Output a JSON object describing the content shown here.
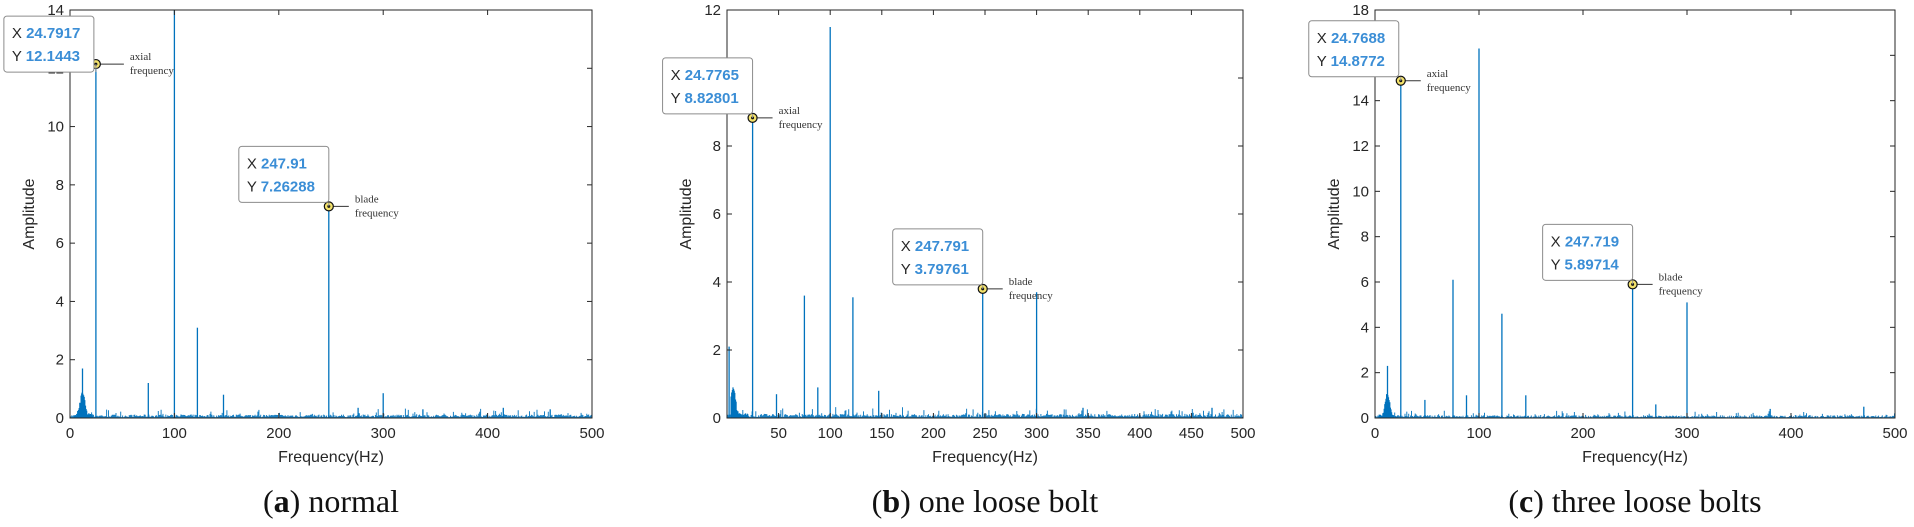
{
  "chart_data": [
    {
      "type": "line",
      "title": "",
      "xlabel": "Frequency(Hz)",
      "ylabel": "Amplitude",
      "xlim": [
        0,
        500
      ],
      "ylim": [
        0,
        14
      ],
      "xticks": [
        0,
        100,
        200,
        300,
        400,
        500
      ],
      "yticks": [
        0,
        2,
        4,
        6,
        8,
        10,
        12,
        14
      ],
      "caption": {
        "letter": "a",
        "text": " normal",
        "paren_open": "(",
        "paren_close": ")",
        "bold_letter": true
      },
      "color": "#0072bd",
      "peaks": [
        {
          "x": 12,
          "y": 1.7
        },
        {
          "x": 24.79,
          "y": 12.14
        },
        {
          "x": 75,
          "y": 1.2
        },
        {
          "x": 100,
          "y": 14.0
        },
        {
          "x": 122,
          "y": 3.1
        },
        {
          "x": 147,
          "y": 0.8
        },
        {
          "x": 247.91,
          "y": 7.26
        },
        {
          "x": 276,
          "y": 0.35
        },
        {
          "x": 300,
          "y": 0.85
        },
        {
          "x": 338,
          "y": 0.3
        },
        {
          "x": 415,
          "y": 0.35
        },
        {
          "x": 460,
          "y": 0.3
        }
      ],
      "annotations": [
        {
          "x": 24.7917,
          "y": 12.1443,
          "x_label": "X",
          "y_label": "Y",
          "x_value": "24.7917",
          "y_value": "12.1443",
          "note_line1": "axial",
          "note_line2": "frequency"
        },
        {
          "x": 247.91,
          "y": 7.26288,
          "x_label": "X",
          "y_label": "Y",
          "x_value": "247.91",
          "y_value": "7.26288",
          "note_line1": "blade",
          "note_line2": "frequency"
        }
      ]
    },
    {
      "type": "line",
      "title": "",
      "xlabel": "Frequency(Hz)",
      "ylabel": "Amplitude",
      "xlim": [
        0,
        500
      ],
      "ylim": [
        0,
        12
      ],
      "xticks": [
        50,
        100,
        150,
        200,
        250,
        300,
        350,
        400,
        450,
        500
      ],
      "yticks": [
        0,
        2,
        4,
        6,
        8,
        10,
        12
      ],
      "caption": {
        "letter": "b",
        "text": " one loose bolt",
        "paren_open": "(",
        "paren_close": ")",
        "bold_letter": true
      },
      "color": "#0072bd",
      "peaks": [
        {
          "x": 2,
          "y": 2.1
        },
        {
          "x": 24.78,
          "y": 8.83
        },
        {
          "x": 48,
          "y": 0.7
        },
        {
          "x": 75,
          "y": 3.6
        },
        {
          "x": 88,
          "y": 0.9
        },
        {
          "x": 100,
          "y": 11.5
        },
        {
          "x": 122,
          "y": 3.55
        },
        {
          "x": 147,
          "y": 0.8
        },
        {
          "x": 247.79,
          "y": 3.8
        },
        {
          "x": 300,
          "y": 3.7
        },
        {
          "x": 345,
          "y": 0.3
        },
        {
          "x": 470,
          "y": 0.3
        }
      ],
      "annotations": [
        {
          "x": 24.7765,
          "y": 8.82801,
          "x_label": "X",
          "y_label": "Y",
          "x_value": "24.7765",
          "y_value": "8.82801",
          "note_line1": "axial",
          "note_line2": "frequency"
        },
        {
          "x": 247.791,
          "y": 3.79761,
          "x_label": "X",
          "y_label": "Y",
          "x_value": "247.791",
          "y_value": "3.79761",
          "note_line1": "blade",
          "note_line2": "frequency"
        }
      ]
    },
    {
      "type": "line",
      "title": "",
      "xlabel": "Frequency(Hz)",
      "ylabel": "Amplitude",
      "xlim": [
        0,
        500
      ],
      "ylim": [
        0,
        18
      ],
      "xticks": [
        0,
        100,
        200,
        300,
        400,
        500
      ],
      "yticks": [
        0,
        2,
        4,
        6,
        8,
        10,
        12,
        14,
        16,
        18
      ],
      "caption": {
        "letter": "c",
        "text": " three loose bolts",
        "paren_open": "(",
        "paren_close": ")",
        "bold_letter": true
      },
      "color": "#0072bd",
      "peaks": [
        {
          "x": 12,
          "y": 2.3
        },
        {
          "x": 24.77,
          "y": 14.88
        },
        {
          "x": 48,
          "y": 0.8
        },
        {
          "x": 75,
          "y": 6.1
        },
        {
          "x": 88,
          "y": 1.0
        },
        {
          "x": 100,
          "y": 16.3
        },
        {
          "x": 122,
          "y": 4.6
        },
        {
          "x": 145,
          "y": 1.0
        },
        {
          "x": 247.72,
          "y": 5.9
        },
        {
          "x": 270,
          "y": 0.6
        },
        {
          "x": 300,
          "y": 5.1
        },
        {
          "x": 380,
          "y": 0.4
        },
        {
          "x": 470,
          "y": 0.5
        }
      ],
      "annotations": [
        {
          "x": 24.7688,
          "y": 14.8772,
          "x_label": "X",
          "y_label": "Y",
          "x_value": "24.7688",
          "y_value": "14.8772",
          "note_line1": "axial",
          "note_line2": "frequency"
        },
        {
          "x": 247.719,
          "y": 5.89714,
          "x_label": "X",
          "y_label": "Y",
          "x_value": "247.719",
          "y_value": "5.89714",
          "note_line1": "blade",
          "note_line2": "frequency"
        }
      ]
    }
  ]
}
